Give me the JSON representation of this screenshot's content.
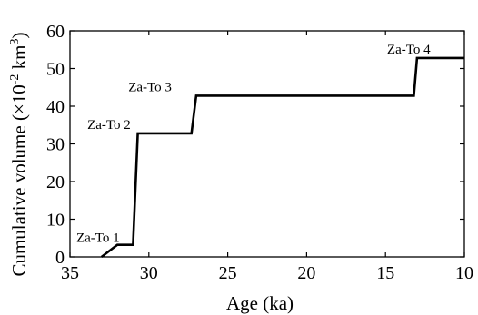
{
  "chart_data": {
    "type": "line",
    "title": "",
    "xlabel": "Age (ka)",
    "ylabel_text": "Cumulative  volume (×10",
    "ylabel_sup1": "-2",
    "ylabel_unit": " km",
    "ylabel_sup2": "3",
    "ylabel_close": ")",
    "xlim": [
      35,
      10
    ],
    "ylim": [
      0,
      60
    ],
    "x_reversed": true,
    "xticks": [
      35,
      30,
      25,
      20,
      15,
      10
    ],
    "yticks": [
      0,
      10,
      20,
      30,
      40,
      50,
      60
    ],
    "grid": false,
    "series": [
      {
        "x": [
          33.0,
          32.0,
          31.0,
          30.7,
          27.3,
          27.0,
          13.2,
          13.0,
          10.0
        ],
        "y": [
          0,
          3.2,
          3.2,
          32.8,
          32.8,
          42.8,
          42.8,
          52.8,
          52.8
        ],
        "color": "#000000"
      }
    ],
    "annotations": [
      {
        "text": "Za-To 1",
        "x": 34.6,
        "y": 4.0
      },
      {
        "text": "Za-To 2",
        "x": 33.9,
        "y": 34.0
      },
      {
        "text": "Za-To 3",
        "x": 31.3,
        "y": 44.0
      },
      {
        "text": "Za-To 4",
        "x": 14.9,
        "y": 54.0
      }
    ]
  }
}
